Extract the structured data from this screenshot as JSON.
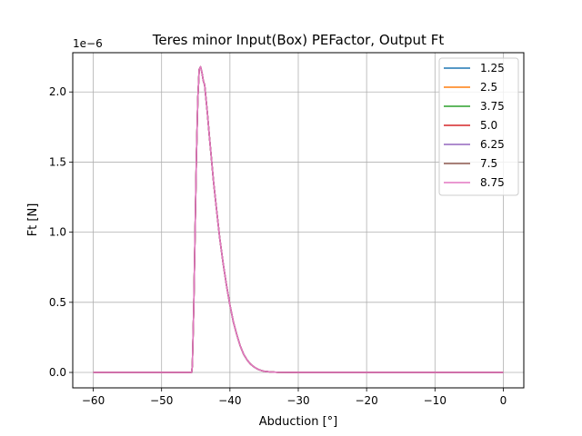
{
  "chart_data": {
    "type": "line",
    "title": "Teres minor Input(Box) PEFactor, Output Ft",
    "xlabel": "Abduction [°]",
    "ylabel": "Ft [N]",
    "y_scale_label": "1e−6",
    "xlim": [
      -63,
      3
    ],
    "ylim": [
      -0.11,
      2.28
    ],
    "xticks": [
      -60,
      -50,
      -40,
      -30,
      -20,
      -10,
      0
    ],
    "xtick_labels": [
      "−60",
      "−50",
      "−40",
      "−30",
      "−20",
      "−10",
      "0"
    ],
    "yticks": [
      0.0,
      0.5,
      1.0,
      1.5,
      2.0
    ],
    "ytick_labels": [
      "0.0",
      "0.5",
      "1.0",
      "1.5",
      "2.0"
    ],
    "grid": true,
    "legend_position": "top-right",
    "x": [
      -60,
      -50,
      -46,
      -45.6,
      -45.5,
      -45.3,
      -45.1,
      -44.9,
      -44.7,
      -44.5,
      -44.3,
      -44.1,
      -43.9,
      -43.7,
      -43.5,
      -43.3,
      -43.0,
      -42.7,
      -42.4,
      -42.0,
      -41.5,
      -41.0,
      -40.5,
      -40.0,
      -39.5,
      -39.0,
      -38.5,
      -38.0,
      -37.5,
      -37.0,
      -36.5,
      -36.0,
      -35.5,
      -35.0,
      -34.0,
      -33.0,
      -30,
      -20,
      -10,
      0
    ],
    "series_values": [
      0,
      0,
      0,
      0,
      0.05,
      0.45,
      1.0,
      1.55,
      1.95,
      2.16,
      2.18,
      2.14,
      2.08,
      2.05,
      1.95,
      1.85,
      1.68,
      1.52,
      1.36,
      1.18,
      0.96,
      0.78,
      0.62,
      0.48,
      0.36,
      0.27,
      0.19,
      0.13,
      0.09,
      0.06,
      0.04,
      0.025,
      0.015,
      0.008,
      0.003,
      0.001,
      0,
      0,
      0,
      0
    ],
    "series": [
      {
        "name": "1.25",
        "color": "#1f77b4"
      },
      {
        "name": "2.5",
        "color": "#ff7f0e"
      },
      {
        "name": "3.75",
        "color": "#2ca02c"
      },
      {
        "name": "5.0",
        "color": "#d62728"
      },
      {
        "name": "6.25",
        "color": "#9467bd"
      },
      {
        "name": "7.5",
        "color": "#8c564b"
      },
      {
        "name": "8.75",
        "color": "#e377c2"
      }
    ]
  }
}
